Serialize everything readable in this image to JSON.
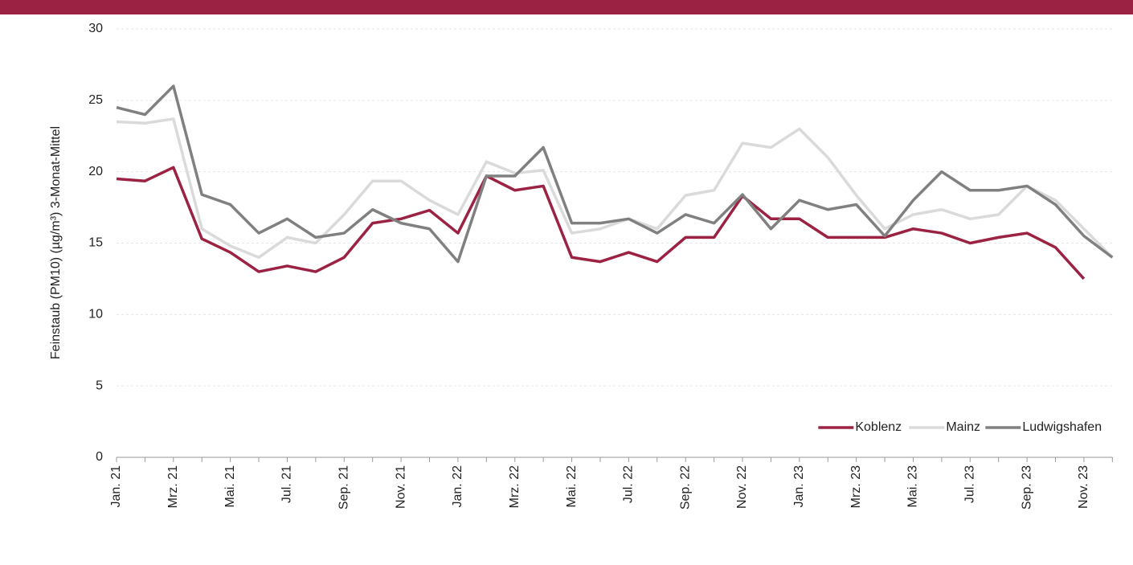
{
  "chart_data": {
    "type": "line",
    "y_label": "Feinstaub (PM10) (µg/m³) 3-Monat-Mittel",
    "categories": [
      "Jan. 21",
      null,
      "Mrz. 21",
      null,
      "Mai. 21",
      null,
      "Jul. 21",
      null,
      "Sep. 21",
      null,
      "Nov. 21",
      null,
      "Jan. 22",
      null,
      "Mrz. 22",
      null,
      "Mai. 22",
      null,
      "Jul. 22",
      null,
      "Sep. 22",
      null,
      "Nov. 22",
      null,
      "Jan. 23",
      null,
      "Mrz. 23",
      null,
      "Mai. 23",
      null,
      "Jul. 23",
      null,
      "Sep. 23",
      null,
      "Nov. 23",
      null
    ],
    "series": [
      {
        "name": "Koblenz",
        "color": "#9b2242",
        "values": [
          19.5,
          19.35,
          20.3,
          15.3,
          14.35,
          13,
          13.4,
          13,
          14,
          16.4,
          16.7,
          17.3,
          15.7,
          19.7,
          18.7,
          19,
          14,
          13.7,
          14.35,
          13.7,
          15.4,
          15.4,
          18.3,
          16.7,
          16.7,
          15.4,
          15.4,
          15.4,
          16,
          15.7,
          15,
          15.4,
          15.7,
          14.7,
          12.5,
          null
        ]
      },
      {
        "name": "Mainz",
        "color": "#dadada",
        "values": [
          23.5,
          23.4,
          23.7,
          16,
          14.8,
          14,
          15.4,
          15,
          17,
          19.35,
          19.35,
          18,
          17,
          20.7,
          19.9,
          20.1,
          15.7,
          16,
          16.7,
          16,
          18.35,
          18.7,
          22,
          21.7,
          23,
          21,
          18.35,
          16,
          17,
          17.35,
          16.7,
          17,
          19,
          18,
          16,
          14
        ]
      },
      {
        "name": "Ludwigshafen",
        "color": "#808080",
        "values": [
          24.5,
          24,
          26,
          18.4,
          17.7,
          15.7,
          16.7,
          15.4,
          15.7,
          17.35,
          16.4,
          16,
          13.7,
          19.7,
          19.7,
          21.7,
          16.4,
          16.4,
          16.7,
          15.7,
          17,
          16.4,
          18.4,
          16,
          18,
          17.35,
          17.7,
          15.5,
          18,
          20,
          18.7,
          18.7,
          19,
          17.7,
          15.5,
          14
        ]
      }
    ],
    "ylim": [
      0,
      30
    ],
    "yticks": [
      0,
      5,
      10,
      15,
      20,
      25,
      30
    ],
    "grid": true,
    "legend": "lower right"
  }
}
